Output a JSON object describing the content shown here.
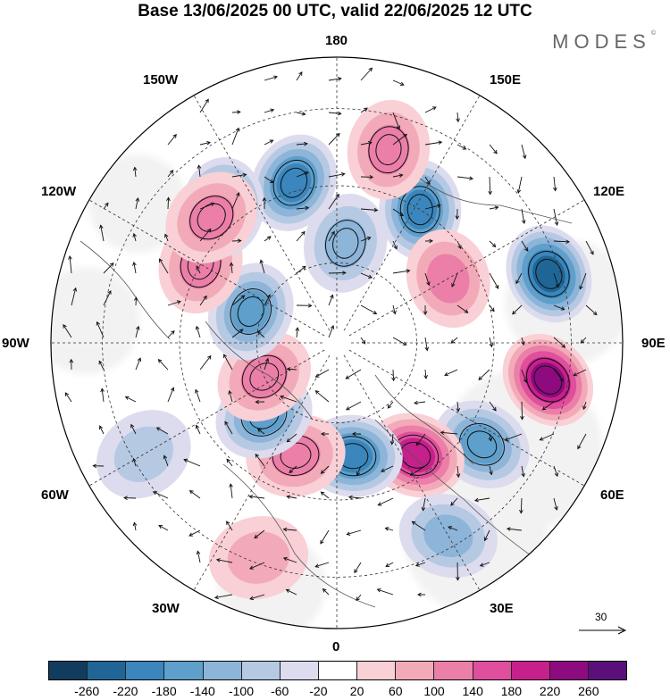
{
  "title": "Base 13/06/2025 00 UTC, valid 22/06/2025 12 UTC",
  "brand": "MODES",
  "brand_mark": "©",
  "longitude_labels": {
    "top": "180",
    "bottom": "0",
    "left": "90W",
    "right": "90E",
    "upper_left_1": "150W",
    "upper_left_2": "120W",
    "upper_right_1": "150E",
    "upper_right_2": "120E",
    "lower_left_1": "60W",
    "lower_left_2": "30W",
    "lower_right_1": "60E",
    "lower_right_2": "30E"
  },
  "reference_vector": "30",
  "colorbar": {
    "tick_labels": [
      "-260",
      "-220",
      "-180",
      "-140",
      "-100",
      "-60",
      "-20",
      "20",
      "60",
      "100",
      "140",
      "180",
      "220",
      "260"
    ],
    "colors": [
      "#123c5e",
      "#1f6696",
      "#3a86bd",
      "#5e9fcb",
      "#8db4d9",
      "#b6c9e2",
      "#dcdcee",
      "#ffffff",
      "#f9d0d5",
      "#f3aab8",
      "#eb7fa8",
      "#df4f9d",
      "#c6208c",
      "#8e0a7f",
      "#5b0f7a"
    ]
  },
  "map_style": {
    "land": "#bdbdbd",
    "ocean_fill": "#f2f2f2",
    "grid": "#333333",
    "coast": "#555555"
  },
  "anomaly_centers": [
    {
      "lon": 195,
      "lat_r": 0.58,
      "value": -200
    },
    {
      "lon": 148,
      "lat_r": 0.55,
      "value": -210
    },
    {
      "lon": 108,
      "lat_r": 0.78,
      "value": -230
    },
    {
      "lon": 80,
      "lat_r": 0.75,
      "value": 230
    },
    {
      "lon": 55,
      "lat_r": 0.62,
      "value": -170
    },
    {
      "lon": 35,
      "lat_r": 0.48,
      "value": 210
    },
    {
      "lon": 8,
      "lat_r": 0.4,
      "value": -200
    },
    {
      "lon": -20,
      "lat_r": 0.42,
      "value": 130
    },
    {
      "lon": -45,
      "lat_r": 0.36,
      "value": -150
    },
    {
      "lon": -65,
      "lat_r": 0.28,
      "value": 130
    },
    {
      "lon": -110,
      "lat_r": 0.32,
      "value": -150
    },
    {
      "lon": -120,
      "lat_r": 0.55,
      "value": 120
    },
    {
      "lon": -140,
      "lat_r": 0.62,
      "value": -180
    },
    {
      "lon": 225,
      "lat_r": 0.62,
      "value": 130
    },
    {
      "lon": 165,
      "lat_r": 0.7,
      "value": 120
    },
    {
      "lon": 175,
      "lat_r": 0.35,
      "value": -130
    },
    {
      "lon": 120,
      "lat_r": 0.45,
      "value": 100
    },
    {
      "lon": 30,
      "lat_r": 0.78,
      "value": -100
    },
    {
      "lon": -20,
      "lat_r": 0.8,
      "value": 80
    },
    {
      "lon": -60,
      "lat_r": 0.78,
      "value": -90
    }
  ]
}
